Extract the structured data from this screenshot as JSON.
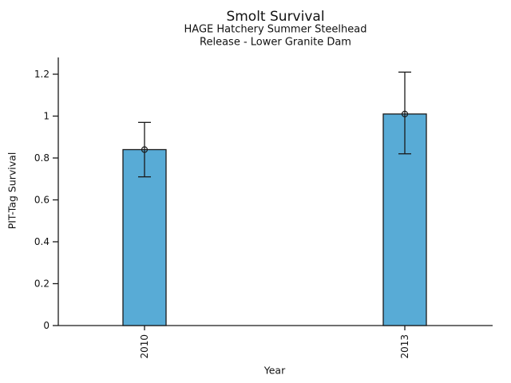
{
  "chart_data": {
    "type": "bar",
    "title": "Smolt Survival",
    "subtitle_line1": "HAGE Hatchery Summer Steelhead",
    "subtitle_line2": "Release - Lower Granite Dam",
    "xlabel": "Year",
    "ylabel": "PIT-Tag Survival",
    "categories": [
      "2010",
      "2013"
    ],
    "values": [
      0.84,
      1.01
    ],
    "error_low": [
      0.71,
      0.82
    ],
    "error_high": [
      0.97,
      1.21
    ],
    "y_tick_labels": [
      "0",
      "0.2",
      "0.4",
      "0.6",
      "0.8",
      "1",
      "1.2"
    ],
    "y_tick_values": [
      0,
      0.2,
      0.4,
      0.6,
      0.8,
      1.0,
      1.2
    ],
    "ylim": [
      0,
      1.28
    ],
    "grid": false,
    "legend": "none",
    "x_tick_label_rotation": -90,
    "marker": "open-circle",
    "bar_color": "#58ABD6",
    "bar_edge_color": "#1a1a1a",
    "axis_color": "#1a1a1a",
    "text_color": "#111111"
  }
}
